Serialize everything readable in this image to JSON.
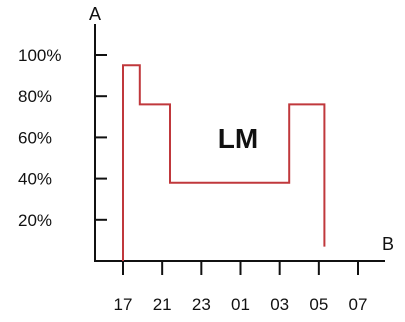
{
  "chart_data": {
    "type": "line",
    "xlabel": "B",
    "ylabel": "A",
    "annotation": "LM",
    "y_tick_labels": [
      "100%",
      "80%",
      "60%",
      "40%",
      "20%"
    ],
    "y_tick_values": [
      100,
      80,
      60,
      40,
      20
    ],
    "x_tick_labels": [
      "17",
      "21",
      "23",
      "01",
      "03",
      "05",
      "07"
    ],
    "xlim": [
      0,
      7
    ],
    "ylim": [
      0,
      100
    ],
    "series": [
      {
        "color": "#c0383c",
        "x": [
          0,
          0,
          0.5,
          0.5,
          1.4,
          1.4,
          4.95,
          4.95,
          6.0,
          6.0
        ],
        "y": [
          0,
          95,
          95,
          76,
          76,
          38,
          38,
          76,
          76,
          7
        ]
      }
    ],
    "colors": {
      "axis": "#111111",
      "series": "#c0383c"
    }
  }
}
